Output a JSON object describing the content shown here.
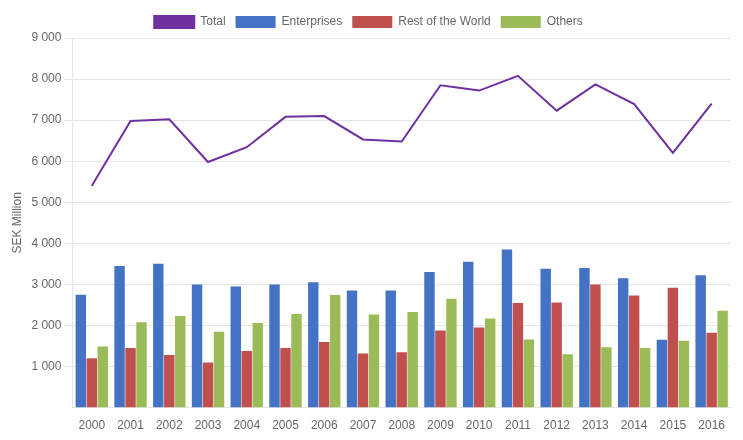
{
  "chart_data": {
    "type": "bar",
    "ylabel": "SEK Million",
    "categories": [
      "2000",
      "2001",
      "2002",
      "2003",
      "2004",
      "2005",
      "2006",
      "2007",
      "2008",
      "2009",
      "2010",
      "2011",
      "2012",
      "2013",
      "2014",
      "2015",
      "2016"
    ],
    "series": [
      {
        "name": "Enterprises",
        "type": "bar",
        "color": "#4472C4",
        "values": [
          2750,
          3450,
          3500,
          3000,
          2950,
          3000,
          3050,
          2850,
          2850,
          3300,
          3550,
          3850,
          3380,
          3400,
          3150,
          1650,
          3220
        ]
      },
      {
        "name": "Rest of the World",
        "type": "bar",
        "color": "#C0504D",
        "values": [
          1200,
          1450,
          1280,
          1100,
          1380,
          1450,
          1600,
          1320,
          1350,
          1880,
          1950,
          2550,
          2560,
          3000,
          2730,
          2920,
          1820
        ]
      },
      {
        "name": "Others",
        "type": "bar",
        "color": "#9BBB59",
        "values": [
          1490,
          2080,
          2230,
          1850,
          2060,
          2280,
          2740,
          2270,
          2330,
          2650,
          2170,
          1660,
          1300,
          1470,
          1450,
          1630,
          2360
        ]
      },
      {
        "name": "Total",
        "type": "line",
        "color": "#7030A0",
        "values": [
          5400,
          6980,
          7020,
          5980,
          6340,
          7080,
          7100,
          6530,
          6480,
          7850,
          7720,
          8080,
          7230,
          7870,
          7390,
          6200,
          7400
        ]
      }
    ],
    "ylim": [
      0,
      9000
    ],
    "yticks": [
      {
        "value": 1000,
        "label": "1 000"
      },
      {
        "value": 2000,
        "label": "2 000"
      },
      {
        "value": 3000,
        "label": "3 000"
      },
      {
        "value": 4000,
        "label": "4 000"
      },
      {
        "value": 5000,
        "label": "5 000"
      },
      {
        "value": 6000,
        "label": "6 000"
      },
      {
        "value": 7000,
        "label": "7 000"
      },
      {
        "value": 8000,
        "label": "8 000"
      },
      {
        "value": 9000,
        "label": "9 000"
      }
    ],
    "grid": true,
    "legend": "top"
  }
}
